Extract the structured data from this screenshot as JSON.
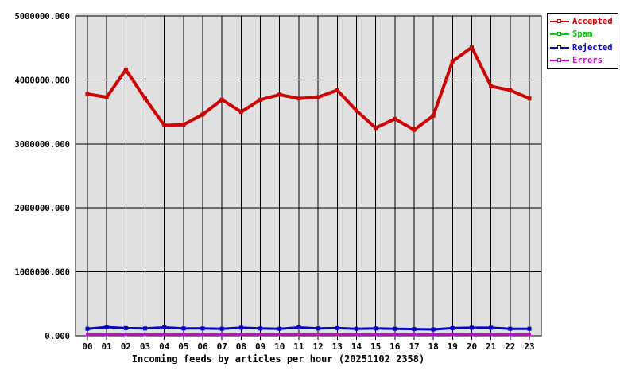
{
  "chart_data": {
    "type": "line",
    "title": "Incoming feeds by articles per hour (20251102 2358)",
    "title_position": "bottom",
    "x": [
      "00",
      "01",
      "02",
      "03",
      "04",
      "05",
      "06",
      "07",
      "08",
      "09",
      "10",
      "11",
      "12",
      "13",
      "14",
      "15",
      "16",
      "17",
      "18",
      "19",
      "20",
      "21",
      "22",
      "23"
    ],
    "ylim": [
      0,
      5000000
    ],
    "ytick_values": [
      0,
      1000000,
      2000000,
      3000000,
      4000000,
      5000000
    ],
    "ytick_labels": [
      "0.000",
      "1000000.000",
      "2000000.000",
      "3000000.000",
      "4000000.000",
      "5000000.000"
    ],
    "grid": true,
    "legend_position": "top-right-outside",
    "plot_bg_color": "#e0e0e0",
    "grid_color": "#000000",
    "series": [
      {
        "name": "Accepted",
        "color": "#cc0000",
        "linewidth": 4,
        "marker": "square",
        "marker_size": 5,
        "zorder": 4,
        "values": [
          3780000,
          3730000,
          4160000,
          3710000,
          3290000,
          3300000,
          3460000,
          3690000,
          3500000,
          3690000,
          3770000,
          3710000,
          3730000,
          3840000,
          3520000,
          3250000,
          3390000,
          3220000,
          3440000,
          4290000,
          4510000,
          3900000,
          3840000,
          3710000
        ]
      },
      {
        "name": "Spam",
        "color": "#00cc00",
        "linewidth": 3,
        "marker": "square",
        "marker_size": 4,
        "zorder": 1,
        "values": [
          20000,
          20000,
          20000,
          20000,
          20000,
          20000,
          20000,
          20000,
          20000,
          20000,
          20000,
          20000,
          20000,
          20000,
          20000,
          20000,
          20000,
          20000,
          20000,
          20000,
          20000,
          20000,
          20000,
          20000
        ]
      },
      {
        "name": "Rejected",
        "color": "#0000cc",
        "linewidth": 3,
        "marker": "square",
        "marker_size": 5,
        "zorder": 3,
        "values": [
          110000,
          135000,
          120000,
          115000,
          130000,
          115000,
          115000,
          110000,
          125000,
          115000,
          110000,
          130000,
          115000,
          120000,
          110000,
          115000,
          110000,
          105000,
          100000,
          120000,
          125000,
          125000,
          110000,
          110000
        ]
      },
      {
        "name": "Errors",
        "color": "#cc00cc",
        "linewidth": 3,
        "marker": "square",
        "marker_size": 4,
        "zorder": 2,
        "values": [
          20000,
          20000,
          20000,
          20000,
          20000,
          20000,
          20000,
          20000,
          20000,
          20000,
          20000,
          20000,
          20000,
          20000,
          20000,
          20000,
          20000,
          20000,
          20000,
          20000,
          20000,
          20000,
          20000,
          20000
        ]
      }
    ]
  }
}
